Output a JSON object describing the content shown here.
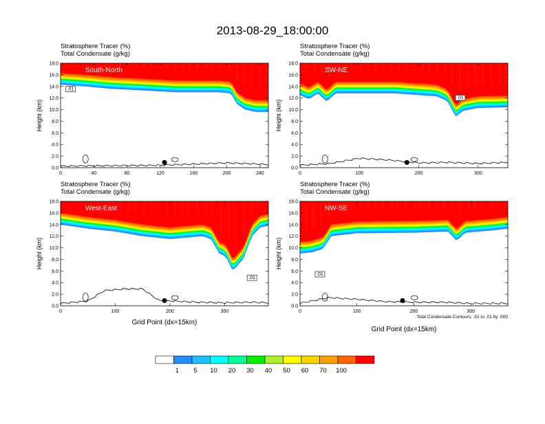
{
  "title": "2013-08-29_18:00:00",
  "colorbar": {
    "colors": [
      "#ffffff",
      "#1e90ff",
      "#1ebeff",
      "#00ffff",
      "#00ff9a",
      "#00f000",
      "#a8f030",
      "#ffff00",
      "#ffd200",
      "#ffa000",
      "#ff6400",
      "#ff0000"
    ],
    "labels": [
      "1",
      "5",
      "10",
      "20",
      "30",
      "40",
      "50",
      "60",
      "70",
      "100"
    ]
  },
  "chart_data": [
    {
      "type": "heatmap",
      "panel": "South-North",
      "title_line1": "Stratosphere Tracer   (%)",
      "title_line2": "Total Condensate   (g/kg)",
      "ylabel": "Height (km)",
      "xlabel": "",
      "xlim": [
        0,
        250
      ],
      "ylim": [
        0,
        18
      ],
      "xticks": [
        "0",
        "40",
        "80",
        "120",
        "160",
        "200",
        "240"
      ],
      "xtick_values": [
        0,
        40,
        80,
        120,
        160,
        200,
        240
      ],
      "yticks": [
        "0.0",
        "2.0",
        "4.0",
        "6.0",
        "8.0",
        "10.0",
        "12.0",
        "14.0",
        "16.0",
        "18.0"
      ],
      "contour_label": ".01",
      "tracer_base_km": [
        [
          0,
          14.3
        ],
        [
          30,
          14.0
        ],
        [
          60,
          13.6
        ],
        [
          100,
          13.3
        ],
        [
          140,
          13.0
        ],
        [
          190,
          13.0
        ],
        [
          205,
          12.8
        ],
        [
          212,
          11.0
        ],
        [
          222,
          10.0
        ],
        [
          235,
          9.6
        ],
        [
          250,
          9.6
        ]
      ],
      "terrain_km": [
        [
          0,
          0.15
        ],
        [
          40,
          0.2
        ],
        [
          80,
          0.25
        ],
        [
          120,
          0.3
        ],
        [
          160,
          0.5
        ],
        [
          200,
          0.7
        ],
        [
          240,
          0.5
        ],
        [
          250,
          0.4
        ]
      ],
      "marker_x": 125
    },
    {
      "type": "heatmap",
      "panel": "SW-NE",
      "title_line1": "Stratosphere Tracer   (%)",
      "title_line2": "Total Condensate   (g/kg)",
      "ylabel": "Height (km)",
      "xlabel": "",
      "xlim": [
        0,
        350
      ],
      "ylim": [
        0,
        18
      ],
      "xticks": [
        "0",
        "100",
        "200",
        "300"
      ],
      "xtick_values": [
        0,
        100,
        200,
        300
      ],
      "yticks": [
        "0.0",
        "2.0",
        "4.0",
        "6.0",
        "8.0",
        "10.0",
        "12.0",
        "14.0",
        "16.0",
        "18.0"
      ],
      "contour_label": ".01",
      "tracer_base_km": [
        [
          0,
          12.5
        ],
        [
          15,
          11.8
        ],
        [
          30,
          12.8
        ],
        [
          45,
          11.4
        ],
        [
          60,
          12.8
        ],
        [
          100,
          12.8
        ],
        [
          160,
          12.8
        ],
        [
          230,
          12.3
        ],
        [
          248,
          11.5
        ],
        [
          262,
          8.8
        ],
        [
          275,
          9.8
        ],
        [
          300,
          10.3
        ],
        [
          350,
          10.4
        ]
      ],
      "terrain_km": [
        [
          0,
          0.3
        ],
        [
          50,
          0.6
        ],
        [
          100,
          1.5
        ],
        [
          150,
          1.2
        ],
        [
          200,
          0.7
        ],
        [
          250,
          0.8
        ],
        [
          300,
          0.6
        ],
        [
          350,
          0.8
        ]
      ],
      "marker_x": 180
    },
    {
      "type": "heatmap",
      "panel": "West-East",
      "title_line1": "Stratosphere Tracer   (%)",
      "title_line2": "Total Condensate   (g/kg)",
      "ylabel": "Height (km)",
      "xlabel": "Grid Point (dx=15km)",
      "xlim": [
        0,
        380
      ],
      "ylim": [
        0,
        18
      ],
      "xticks": [
        "0",
        "100",
        "200",
        "300"
      ],
      "xtick_values": [
        0,
        100,
        200,
        300
      ],
      "yticks": [
        "0.0",
        "2.0",
        "4.0",
        "6.0",
        "8.0",
        "10.0",
        "12.0",
        "14.0",
        "16.0",
        "18.0"
      ],
      "contour_label": ".01",
      "tracer_base_km": [
        [
          0,
          14.0
        ],
        [
          50,
          13.3
        ],
        [
          100,
          12.8
        ],
        [
          150,
          12.0
        ],
        [
          200,
          11.5
        ],
        [
          260,
          12.0
        ],
        [
          275,
          11.5
        ],
        [
          290,
          9.0
        ],
        [
          302,
          8.5
        ],
        [
          315,
          6.0
        ],
        [
          335,
          8.2
        ],
        [
          350,
          12.0
        ],
        [
          365,
          13.5
        ],
        [
          380,
          13.8
        ]
      ],
      "terrain_km": [
        [
          0,
          0.3
        ],
        [
          50,
          0.7
        ],
        [
          80,
          2.5
        ],
        [
          120,
          2.8
        ],
        [
          150,
          2.8
        ],
        [
          180,
          0.8
        ],
        [
          250,
          0.5
        ],
        [
          300,
          0.4
        ],
        [
          350,
          0.5
        ],
        [
          380,
          0.4
        ]
      ],
      "marker_x": 190
    },
    {
      "type": "heatmap",
      "panel": "NW-SE",
      "title_line1": "Stratosphere Tracer   (%)",
      "title_line2": "Total Condensate   (g/kg)",
      "ylabel": "Height (km)",
      "xlabel": "Grid Point (dx=15km)",
      "xlim": [
        0,
        365
      ],
      "ylim": [
        0,
        18
      ],
      "xticks": [
        "0",
        "100",
        "200",
        "300"
      ],
      "xtick_values": [
        0,
        100,
        200,
        300
      ],
      "yticks": [
        "0.0",
        "2.0",
        "4.0",
        "6.0",
        "8.0",
        "10.0",
        "12.0",
        "14.0",
        "16.0",
        "18.0"
      ],
      "contour_label": ".01",
      "tracer_base_km": [
        [
          0,
          9.0
        ],
        [
          20,
          9.2
        ],
        [
          40,
          9.8
        ],
        [
          55,
          12.0
        ],
        [
          100,
          12.5
        ],
        [
          200,
          12.6
        ],
        [
          260,
          12.8
        ],
        [
          275,
          11.2
        ],
        [
          290,
          12.6
        ],
        [
          340,
          13.0
        ],
        [
          365,
          13.3
        ]
      ],
      "terrain_km": [
        [
          0,
          0.3
        ],
        [
          50,
          1.3
        ],
        [
          100,
          1.0
        ],
        [
          150,
          0.6
        ],
        [
          200,
          0.5
        ],
        [
          250,
          0.5
        ],
        [
          300,
          0.3
        ],
        [
          365,
          0.3
        ]
      ],
      "marker_x": 180,
      "note": "Total Condensate Contours: .01 to .01 by .000"
    }
  ]
}
